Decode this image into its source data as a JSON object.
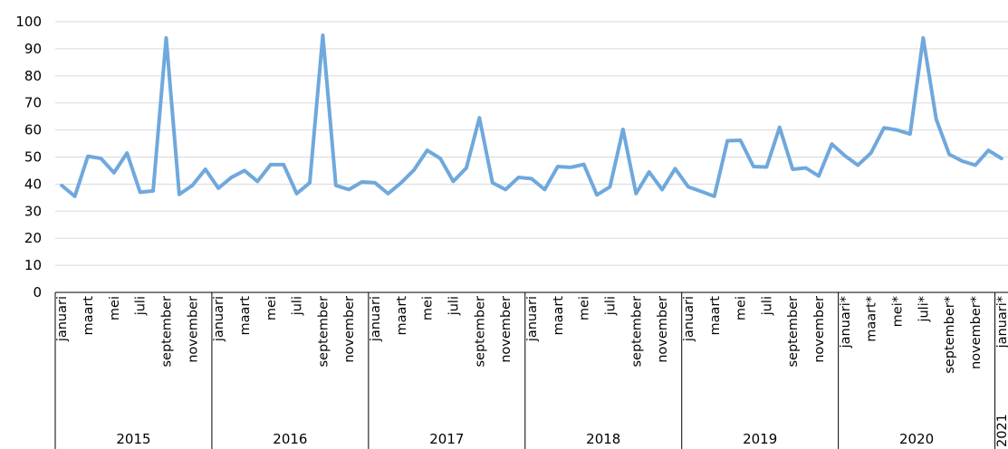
{
  "chart_data": {
    "type": "line",
    "title": "",
    "xlabel": "",
    "ylabel": "",
    "ylim": [
      0,
      100
    ],
    "yticks": [
      0,
      10,
      20,
      30,
      40,
      50,
      60,
      70,
      80,
      90,
      100
    ],
    "grid": "horizontal",
    "legend": "none",
    "series": [
      {
        "color": "#6fa8dc",
        "values": [
          39.5,
          35.5,
          50.3,
          49.5,
          44.2,
          51.5,
          37.0,
          37.5,
          94.0,
          36.2,
          39.5,
          45.5,
          38.5,
          42.5,
          45.0,
          41.0,
          47.2,
          47.2,
          36.5,
          40.5,
          95.0,
          39.5,
          38.0,
          40.8,
          40.5,
          36.5,
          40.5,
          45.3,
          52.5,
          49.5,
          41.0,
          46.0,
          64.5,
          40.5,
          38.0,
          42.5,
          42.0,
          38.0,
          46.5,
          46.2,
          47.3,
          36.0,
          39.0,
          60.2,
          36.5,
          44.5,
          38.0,
          45.7,
          39.0,
          37.3,
          35.5,
          56.0,
          56.2,
          46.5,
          46.3,
          61.0,
          45.5,
          46.0,
          43.0,
          54.8,
          50.5,
          47.0,
          51.5,
          60.8,
          60.0,
          58.5,
          94.0,
          64.0,
          51.0,
          48.5,
          47.0,
          52.5,
          49.5
        ]
      }
    ],
    "months": [
      "januari",
      "",
      "maart",
      "",
      "mei",
      "",
      "juli",
      "",
      "september",
      "",
      "november",
      "",
      "januari",
      "",
      "maart",
      "",
      "mei",
      "",
      "juli",
      "",
      "september",
      "",
      "november",
      "",
      "januari",
      "",
      "maart",
      "",
      "mei",
      "",
      "juli",
      "",
      "september",
      "",
      "november",
      "",
      "januari",
      "",
      "maart",
      "",
      "mei",
      "",
      "juli",
      "",
      "september",
      "",
      "november",
      "",
      "januari",
      "",
      "maart",
      "",
      "mei",
      "",
      "juli",
      "",
      "september",
      "",
      "november",
      "",
      "januari*",
      "",
      "maart*",
      "",
      "mei*",
      "",
      "juli*",
      "",
      "september*",
      "",
      "november*",
      "",
      "januari*"
    ],
    "years": [
      {
        "label": "2015",
        "start": 0,
        "count": 12
      },
      {
        "label": "2016",
        "start": 12,
        "count": 12
      },
      {
        "label": "2017",
        "start": 24,
        "count": 12
      },
      {
        "label": "2018",
        "start": 36,
        "count": 12
      },
      {
        "label": "2019",
        "start": 48,
        "count": 12
      },
      {
        "label": "2020",
        "start": 60,
        "count": 12
      },
      {
        "label": "2021",
        "start": 72,
        "count": 1
      }
    ]
  }
}
